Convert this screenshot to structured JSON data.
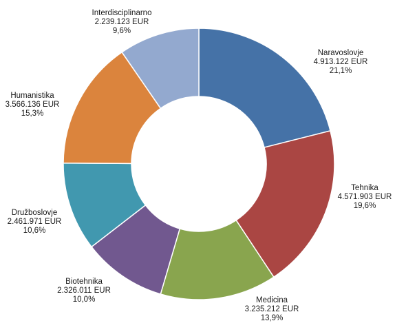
{
  "chart_data": {
    "type": "pie",
    "variant": "donut",
    "title": "",
    "slices": [
      {
        "name": "Naravoslovje",
        "value": 4913122,
        "amount_label": "4.913.122 EUR",
        "percent_label": "21,1%",
        "color": "#4572A7"
      },
      {
        "name": "Tehnika",
        "value": 4571903,
        "amount_label": "4.571.903 EUR",
        "percent_label": "19,6%",
        "color": "#AA4643"
      },
      {
        "name": "Medicina",
        "value": 3235212,
        "amount_label": "3.235.212 EUR",
        "percent_label": "13,9%",
        "color": "#89A54E"
      },
      {
        "name": "Biotehnika",
        "value": 2326011,
        "amount_label": "2.326.011 EUR",
        "percent_label": "10,0%",
        "color": "#71588F"
      },
      {
        "name": "Družboslovje",
        "value": 2461971,
        "amount_label": "2.461.971 EUR",
        "percent_label": "10,6%",
        "color": "#4198AF"
      },
      {
        "name": "Humanistika",
        "value": 3566136,
        "amount_label": "3.566.136 EUR",
        "percent_label": "15,3%",
        "color": "#DB843D"
      },
      {
        "name": "Interdisciplinarno",
        "value": 2239123,
        "amount_label": "2.239.123 EUR",
        "percent_label": "9,6%",
        "color": "#93A9CF"
      }
    ],
    "start_angle_deg": 0,
    "direction": "clockwise",
    "legend": "none"
  }
}
